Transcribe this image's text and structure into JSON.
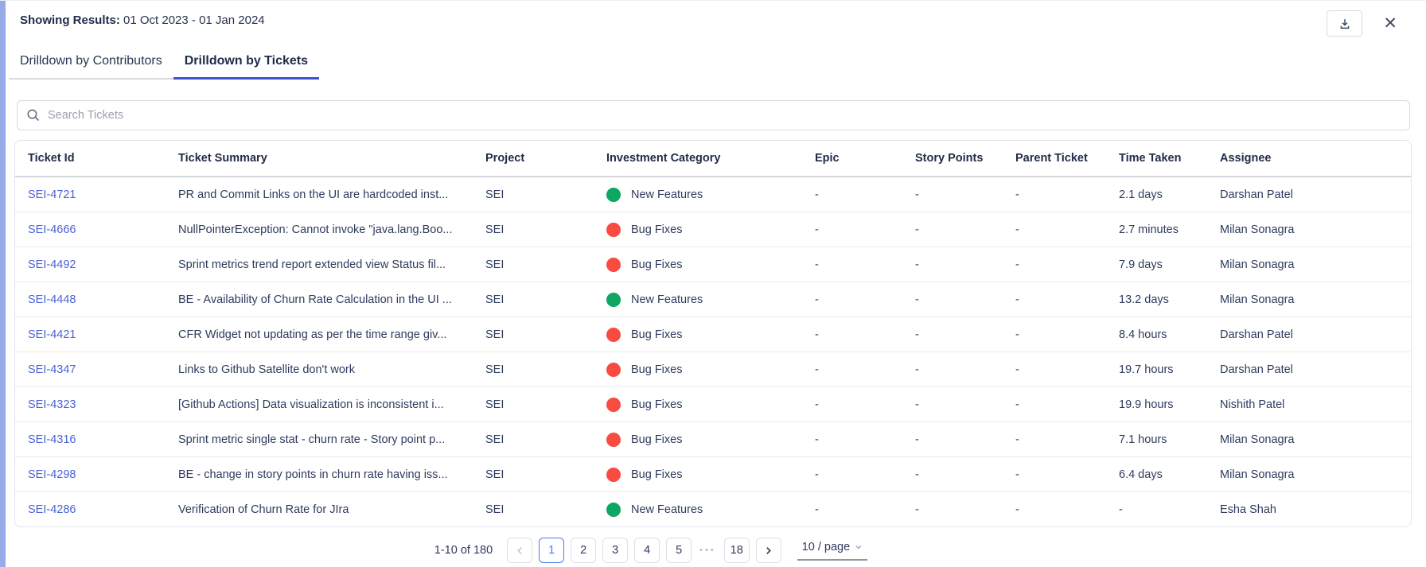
{
  "page": {
    "showing_label": "Showing Results:",
    "date_range": "01 Oct 2023 - 01 Jan 2024"
  },
  "icons": {
    "close": "✕",
    "ellipsis": "•••"
  },
  "tabs": [
    {
      "label": "Drilldown by Contributors",
      "active": false
    },
    {
      "label": "Drilldown by Tickets",
      "active": true
    }
  ],
  "search": {
    "placeholder": "Search Tickets"
  },
  "colors": {
    "new_features_dot": "#0ca762",
    "bug_fixes_dot": "#f84c42",
    "link": "#4a63d6",
    "active_tab_underline": "#3e4fd0",
    "active_page": "#4d7ce1",
    "left_strip": "#98abe8"
  },
  "table": {
    "columns": [
      "Ticket Id",
      "Ticket Summary",
      "Project",
      "Investment Category",
      "Epic",
      "Story Points",
      "Parent Ticket",
      "Time Taken",
      "Assignee"
    ],
    "rows": [
      {
        "ticket_id": "SEI-4721",
        "summary": "PR and Commit Links on the UI are hardcoded inst...",
        "project": "SEI",
        "category": "New Features",
        "dot_color": "#0ca762",
        "epic": "-",
        "story_points": "-",
        "parent_ticket": "-",
        "time_taken": "2.1 days",
        "assignee": "Darshan Patel"
      },
      {
        "ticket_id": "SEI-4666",
        "summary": "NullPointerException: Cannot invoke \"java.lang.Boo...",
        "project": "SEI",
        "category": "Bug Fixes",
        "dot_color": "#f84c42",
        "epic": "-",
        "story_points": "-",
        "parent_ticket": "-",
        "time_taken": "2.7 minutes",
        "assignee": "Milan Sonagra"
      },
      {
        "ticket_id": "SEI-4492",
        "summary": "Sprint metrics trend report extended view Status fil...",
        "project": "SEI",
        "category": "Bug Fixes",
        "dot_color": "#f84c42",
        "epic": "-",
        "story_points": "-",
        "parent_ticket": "-",
        "time_taken": "7.9 days",
        "assignee": "Milan Sonagra"
      },
      {
        "ticket_id": "SEI-4448",
        "summary": "BE - Availability of Churn Rate Calculation in the UI ...",
        "project": "SEI",
        "category": "New Features",
        "dot_color": "#0ca762",
        "epic": "-",
        "story_points": "-",
        "parent_ticket": "-",
        "time_taken": "13.2 days",
        "assignee": "Milan Sonagra"
      },
      {
        "ticket_id": "SEI-4421",
        "summary": "CFR Widget not updating as per the time range giv...",
        "project": "SEI",
        "category": "Bug Fixes",
        "dot_color": "#f84c42",
        "epic": "-",
        "story_points": "-",
        "parent_ticket": "-",
        "time_taken": "8.4 hours",
        "assignee": "Darshan Patel"
      },
      {
        "ticket_id": "SEI-4347",
        "summary": "Links to Github Satellite don't work",
        "project": "SEI",
        "category": "Bug Fixes",
        "dot_color": "#f84c42",
        "epic": "-",
        "story_points": "-",
        "parent_ticket": "-",
        "time_taken": "19.7 hours",
        "assignee": "Darshan Patel"
      },
      {
        "ticket_id": "SEI-4323",
        "summary": "[Github Actions] Data visualization is inconsistent i...",
        "project": "SEI",
        "category": "Bug Fixes",
        "dot_color": "#f84c42",
        "epic": "-",
        "story_points": "-",
        "parent_ticket": "-",
        "time_taken": "19.9 hours",
        "assignee": "Nishith Patel"
      },
      {
        "ticket_id": "SEI-4316",
        "summary": "Sprint metric single stat - churn rate - Story point p...",
        "project": "SEI",
        "category": "Bug Fixes",
        "dot_color": "#f84c42",
        "epic": "-",
        "story_points": "-",
        "parent_ticket": "-",
        "time_taken": "7.1 hours",
        "assignee": "Milan Sonagra"
      },
      {
        "ticket_id": "SEI-4298",
        "summary": "BE - change in story points in churn rate having iss...",
        "project": "SEI",
        "category": "Bug Fixes",
        "dot_color": "#f84c42",
        "epic": "-",
        "story_points": "-",
        "parent_ticket": "-",
        "time_taken": "6.4 days",
        "assignee": "Milan Sonagra"
      },
      {
        "ticket_id": "SEI-4286",
        "summary": "Verification of Churn Rate for JIra",
        "project": "SEI",
        "category": "New Features",
        "dot_color": "#0ca762",
        "epic": "-",
        "story_points": "-",
        "parent_ticket": "-",
        "time_taken": "-",
        "assignee": "Esha Shah"
      }
    ]
  },
  "pagination": {
    "range_text": "1-10 of 180",
    "pages": [
      "1",
      "2",
      "3",
      "4",
      "5"
    ],
    "active_page": "1",
    "ellipsis": "•••",
    "last_page": "18",
    "page_size": "10 / page"
  }
}
